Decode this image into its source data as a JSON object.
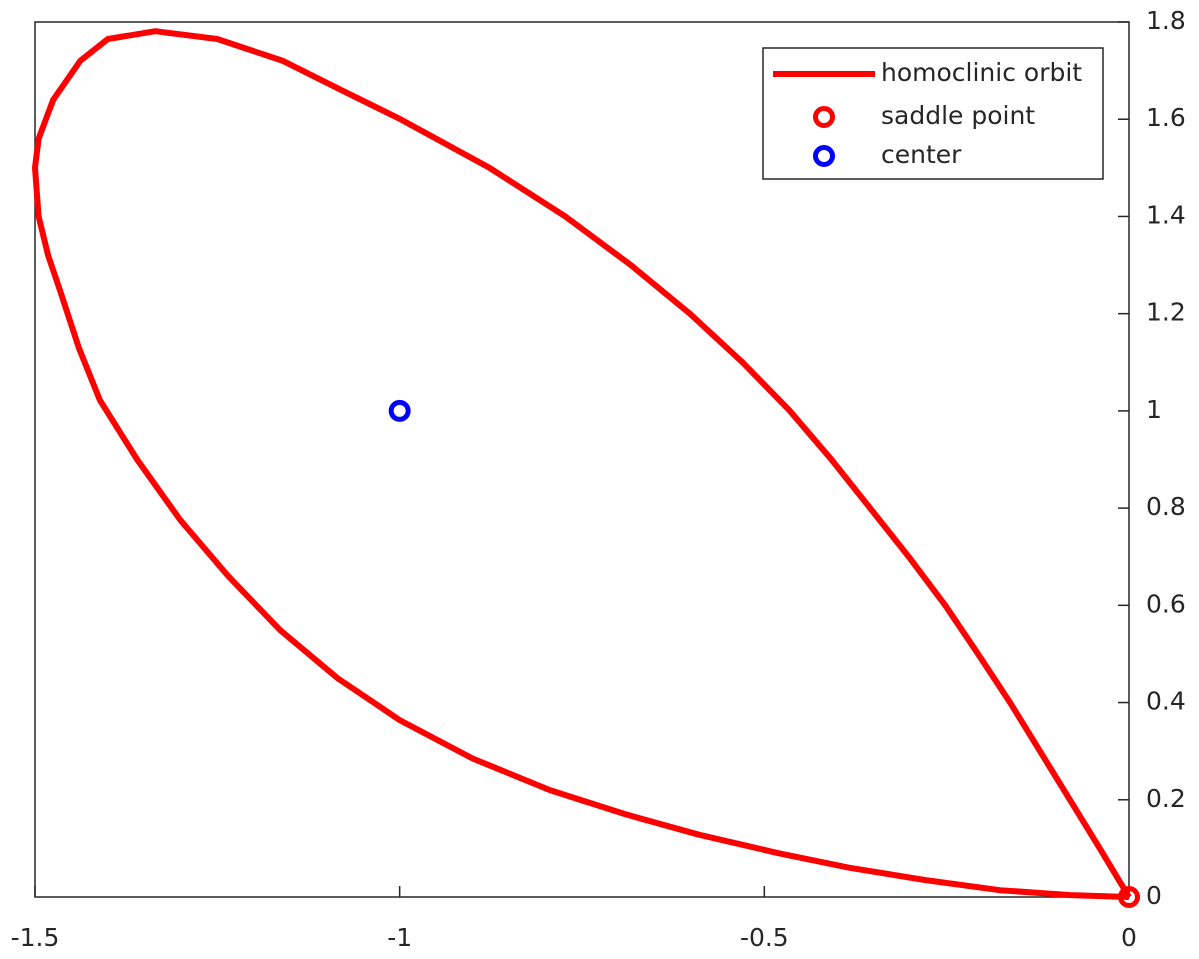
{
  "chart_data": {
    "type": "line",
    "xlim": [
      -1.5,
      0
    ],
    "xticks": [
      -1.5,
      -1,
      -0.5,
      0
    ],
    "ylim": [
      0,
      1.8
    ],
    "yticks": [
      0,
      0.2,
      0.4,
      0.6,
      0.8,
      1,
      1.2,
      1.4,
      1.6,
      1.8
    ],
    "y_axis_side": "right",
    "grid": false,
    "legend": "upper right",
    "series": [
      {
        "name": "homoclinic orbit",
        "color": "#ff0000",
        "style": "line",
        "x": [
          0,
          -0.04,
          -0.081,
          -0.122,
          -0.163,
          -0.207,
          -0.252,
          -0.302,
          -0.355,
          -0.408,
          -0.465,
          -0.53,
          -0.602,
          -0.683,
          -0.773,
          -0.877,
          -0.999,
          -1.08,
          -1.16,
          -1.25,
          -1.335,
          -1.4,
          -1.438,
          -1.475,
          -1.495,
          -1.5,
          -1.495,
          -1.482,
          -1.466,
          -1.44,
          -1.411,
          -1.36,
          -1.301,
          -1.235,
          -1.164,
          -1.085,
          -1.0,
          -0.9,
          -0.794,
          -0.69,
          -0.589,
          -0.48,
          -0.383,
          -0.28,
          -0.177,
          -0.08,
          0
        ],
        "values": [
          0,
          0.1,
          0.2,
          0.3,
          0.4,
          0.5,
          0.6,
          0.7,
          0.8,
          0.9,
          1.0,
          1.1,
          1.2,
          1.3,
          1.4,
          1.5,
          1.6,
          1.66,
          1.72,
          1.765,
          1.781,
          1.765,
          1.72,
          1.64,
          1.56,
          1.5,
          1.4,
          1.32,
          1.249,
          1.13,
          1.022,
          0.9,
          0.776,
          0.66,
          0.549,
          0.45,
          0.364,
          0.285,
          0.22,
          0.17,
          0.128,
          0.09,
          0.06,
          0.035,
          0.014,
          0.004,
          0
        ]
      },
      {
        "name": "saddle point",
        "color": "#ff0000",
        "style": "marker",
        "x": [
          0
        ],
        "values": [
          0
        ]
      },
      {
        "name": "center",
        "color": "#0000ff",
        "style": "marker",
        "x": [
          -1
        ],
        "values": [
          1
        ]
      }
    ]
  }
}
